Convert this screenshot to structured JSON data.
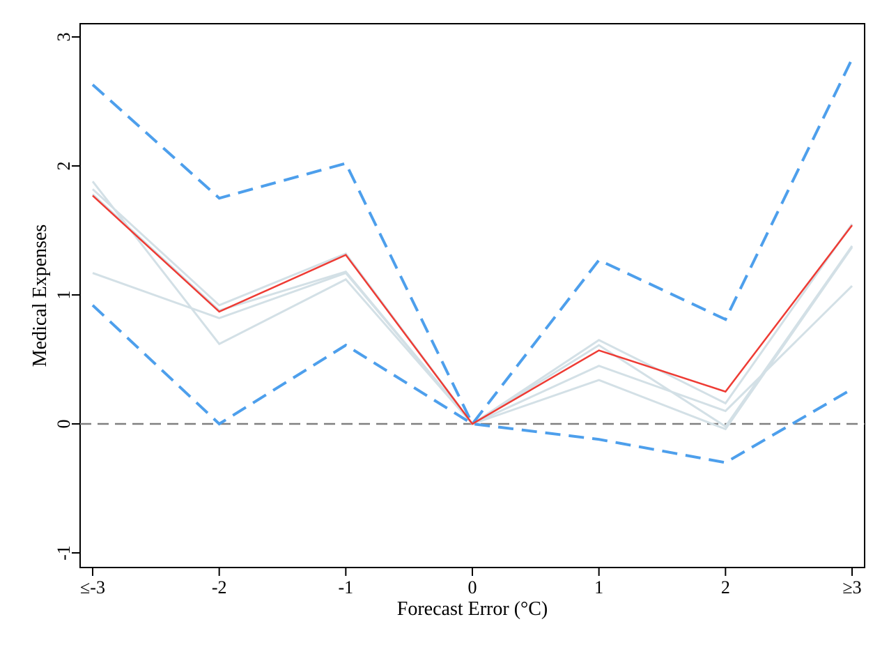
{
  "chart_data": {
    "type": "line",
    "xlabel": "Forecast Error (°C)",
    "ylabel": "Medical Expenses",
    "x_positions": [
      -3,
      -2,
      -1,
      0,
      1,
      2,
      3
    ],
    "categories": [
      "≤-3",
      "-2",
      "-1",
      "0",
      "1",
      "2",
      "≥3"
    ],
    "xlim": [
      -3.1,
      3.1
    ],
    "ylim": [
      -1.1,
      3.1
    ],
    "yticks": [
      -1,
      0,
      1,
      2,
      3
    ],
    "ytick_labels": [
      "-1",
      "0",
      "1",
      "2",
      "3"
    ],
    "grid": false,
    "reference_line": {
      "y": 0,
      "style": "dashed",
      "color": "#808080"
    },
    "series": [
      {
        "role": "robustness",
        "color": "#d3e0e6",
        "values": [
          1.17,
          0.82,
          1.17,
          0.0,
          0.45,
          0.1,
          1.07
        ]
      },
      {
        "role": "robustness",
        "color": "#d3e0e6",
        "values": [
          1.88,
          0.62,
          1.12,
          0.0,
          0.34,
          -0.04,
          1.37
        ]
      },
      {
        "role": "robustness",
        "color": "#d3e0e6",
        "values": [
          1.82,
          0.92,
          1.32,
          0.0,
          0.65,
          0.16,
          1.55
        ]
      },
      {
        "role": "robustness",
        "color": "#d3e0e6",
        "values": [
          1.78,
          0.88,
          1.18,
          0.0,
          0.61,
          -0.02,
          1.38
        ]
      },
      {
        "role": "upper_ci",
        "color": "#4d9fec",
        "values": [
          2.63,
          1.75,
          2.02,
          0.0,
          1.27,
          0.81,
          2.83
        ]
      },
      {
        "role": "lower_ci",
        "color": "#4d9fec",
        "values": [
          0.92,
          0.0,
          0.61,
          0.0,
          -0.12,
          -0.3,
          0.27
        ]
      },
      {
        "role": "estimate",
        "color": "#ee3b34",
        "values": [
          1.77,
          0.87,
          1.31,
          0.0,
          0.57,
          0.25,
          1.54
        ]
      }
    ]
  }
}
